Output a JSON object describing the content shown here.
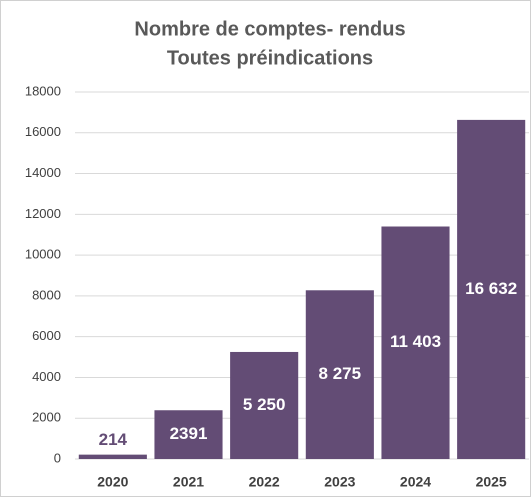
{
  "chart_data": {
    "type": "bar",
    "title": "Nombre de comptes- rendus",
    "subtitle": "Toutes préindications",
    "categories": [
      "2020",
      "2021",
      "2022",
      "2023",
      "2024",
      "2025"
    ],
    "values": [
      214,
      2391,
      5250,
      8275,
      11403,
      16632
    ],
    "value_labels": [
      "214",
      "2391",
      "5 250",
      "8 275",
      "11 403",
      "16 632"
    ],
    "color": "#634c75",
    "ylim": [
      0,
      18000
    ],
    "yticks": [
      0,
      2000,
      4000,
      6000,
      8000,
      10000,
      12000,
      14000,
      16000,
      18000
    ],
    "grid": true
  }
}
